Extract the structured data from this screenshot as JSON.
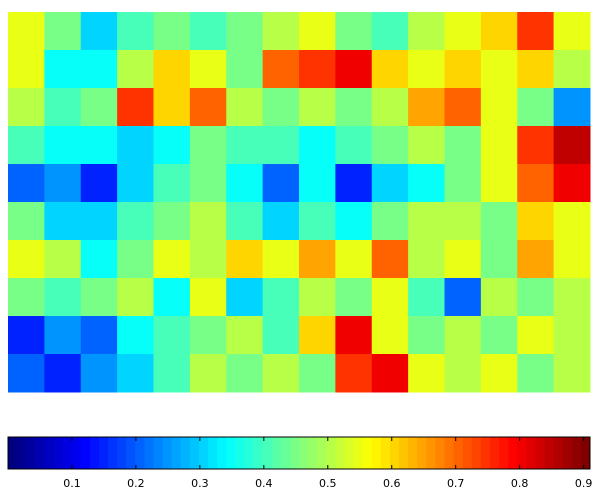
{
  "chart_data": {
    "type": "heatmap",
    "colormap": "jet",
    "z": [
      [
        0.55,
        0.45,
        0.3,
        0.4,
        0.45,
        0.4,
        0.45,
        0.5,
        0.55,
        0.45,
        0.4,
        0.5,
        0.55,
        0.6,
        0.75,
        0.55
      ],
      [
        0.55,
        0.35,
        0.35,
        0.5,
        0.6,
        0.55,
        0.45,
        0.7,
        0.75,
        0.8,
        0.6,
        0.55,
        0.6,
        0.55,
        0.6,
        0.5
      ],
      [
        0.5,
        0.4,
        0.45,
        0.75,
        0.6,
        0.7,
        0.5,
        0.45,
        0.5,
        0.45,
        0.5,
        0.65,
        0.7,
        0.55,
        0.45,
        0.25
      ],
      [
        0.4,
        0.35,
        0.35,
        0.3,
        0.35,
        0.45,
        0.4,
        0.4,
        0.35,
        0.4,
        0.45,
        0.5,
        0.45,
        0.55,
        0.75,
        0.85
      ],
      [
        0.2,
        0.25,
        0.15,
        0.3,
        0.4,
        0.45,
        0.35,
        0.2,
        0.35,
        0.15,
        0.3,
        0.35,
        0.45,
        0.55,
        0.7,
        0.8
      ],
      [
        0.45,
        0.3,
        0.3,
        0.4,
        0.45,
        0.5,
        0.4,
        0.3,
        0.4,
        0.35,
        0.45,
        0.5,
        0.5,
        0.45,
        0.6,
        0.55
      ],
      [
        0.55,
        0.5,
        0.35,
        0.45,
        0.55,
        0.5,
        0.6,
        0.55,
        0.65,
        0.55,
        0.7,
        0.5,
        0.55,
        0.45,
        0.65,
        0.55
      ],
      [
        0.45,
        0.4,
        0.45,
        0.5,
        0.35,
        0.55,
        0.3,
        0.4,
        0.5,
        0.45,
        0.55,
        0.4,
        0.2,
        0.5,
        0.45,
        0.5
      ],
      [
        0.15,
        0.25,
        0.2,
        0.35,
        0.4,
        0.45,
        0.5,
        0.4,
        0.6,
        0.8,
        0.55,
        0.45,
        0.5,
        0.45,
        0.55,
        0.5
      ],
      [
        0.2,
        0.15,
        0.25,
        0.3,
        0.4,
        0.5,
        0.45,
        0.5,
        0.45,
        0.75,
        0.8,
        0.55,
        0.5,
        0.55,
        0.45,
        0.5
      ]
    ],
    "clim": [
      0,
      0.91
    ],
    "colorbar_ticks": [
      0.1,
      0.2,
      0.3,
      0.4,
      0.5,
      0.6,
      0.7,
      0.8,
      0.9
    ]
  }
}
